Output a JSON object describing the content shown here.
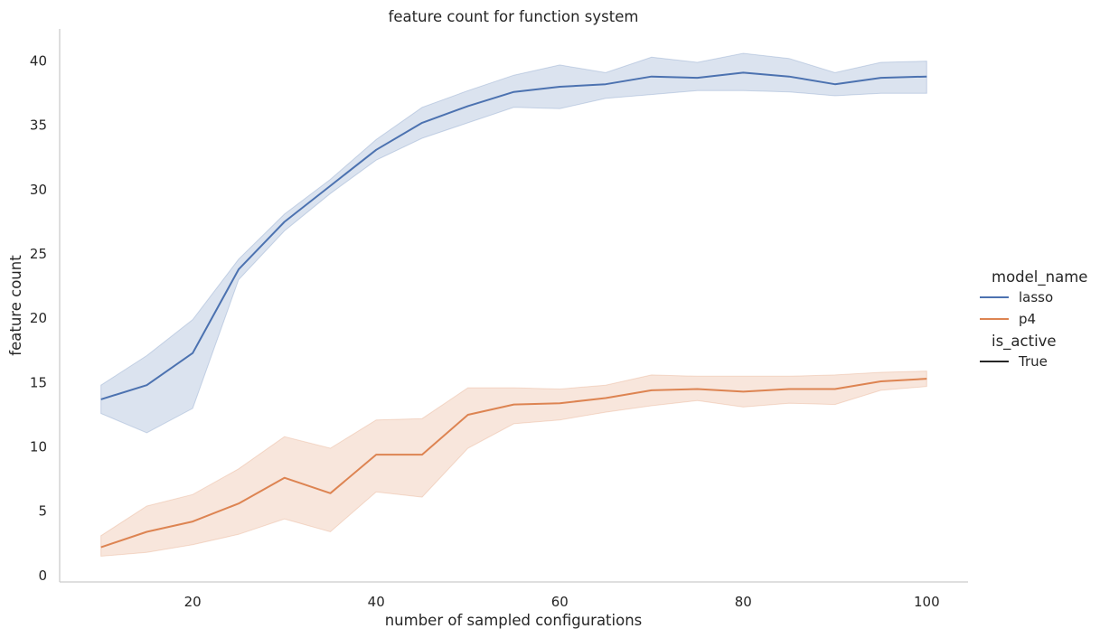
{
  "chart_data": {
    "type": "line",
    "title": "feature count for function system",
    "xlabel": "number of sampled configurations",
    "ylabel": "feature count",
    "xlim": [
      5.5,
      104.5
    ],
    "ylim": [
      -0.5,
      42.5
    ],
    "xticks": [
      20,
      40,
      60,
      80,
      100
    ],
    "yticks": [
      0,
      5,
      10,
      15,
      20,
      25,
      30,
      35,
      40
    ],
    "grid": false,
    "x": [
      10,
      15,
      20,
      25,
      30,
      35,
      40,
      45,
      50,
      55,
      60,
      65,
      70,
      75,
      80,
      85,
      90,
      95,
      100
    ],
    "series": [
      {
        "name": "lasso",
        "color": "#4c72b0",
        "values": [
          13.7,
          14.8,
          17.3,
          23.8,
          27.5,
          30.3,
          33.1,
          35.2,
          36.5,
          37.6,
          38.0,
          38.2,
          38.8,
          38.7,
          39.1,
          38.8,
          38.2,
          38.7,
          38.8
        ],
        "ci_low": [
          12.6,
          11.1,
          13.0,
          23.0,
          26.8,
          29.7,
          32.3,
          34.0,
          35.2,
          36.4,
          36.3,
          37.1,
          37.4,
          37.7,
          37.7,
          37.6,
          37.3,
          37.5,
          37.5
        ],
        "ci_high": [
          14.8,
          17.1,
          19.9,
          24.6,
          28.1,
          30.8,
          33.9,
          36.4,
          37.7,
          38.9,
          39.7,
          39.1,
          40.3,
          39.9,
          40.6,
          40.2,
          39.1,
          39.9,
          40.0
        ]
      },
      {
        "name": "p4",
        "color": "#dd8452",
        "values": [
          2.2,
          3.4,
          4.2,
          5.6,
          7.6,
          6.4,
          9.4,
          9.4,
          12.5,
          13.3,
          13.4,
          13.8,
          14.4,
          14.5,
          14.3,
          14.5,
          14.5,
          15.1,
          15.3
        ],
        "ci_low": [
          1.5,
          1.8,
          2.4,
          3.2,
          4.4,
          3.4,
          6.5,
          6.1,
          9.9,
          11.8,
          12.1,
          12.7,
          13.2,
          13.6,
          13.1,
          13.4,
          13.3,
          14.4,
          14.7
        ],
        "ci_high": [
          3.1,
          5.4,
          6.3,
          8.3,
          10.8,
          9.9,
          12.1,
          12.2,
          14.6,
          14.6,
          14.5,
          14.8,
          15.6,
          15.5,
          15.5,
          15.5,
          15.6,
          15.8,
          15.9
        ]
      }
    ],
    "legend": {
      "placement": "right",
      "hue_title": "model_name",
      "style_title": "is_active",
      "style_entries": [
        {
          "label": "True",
          "color": "#262626"
        }
      ]
    }
  }
}
